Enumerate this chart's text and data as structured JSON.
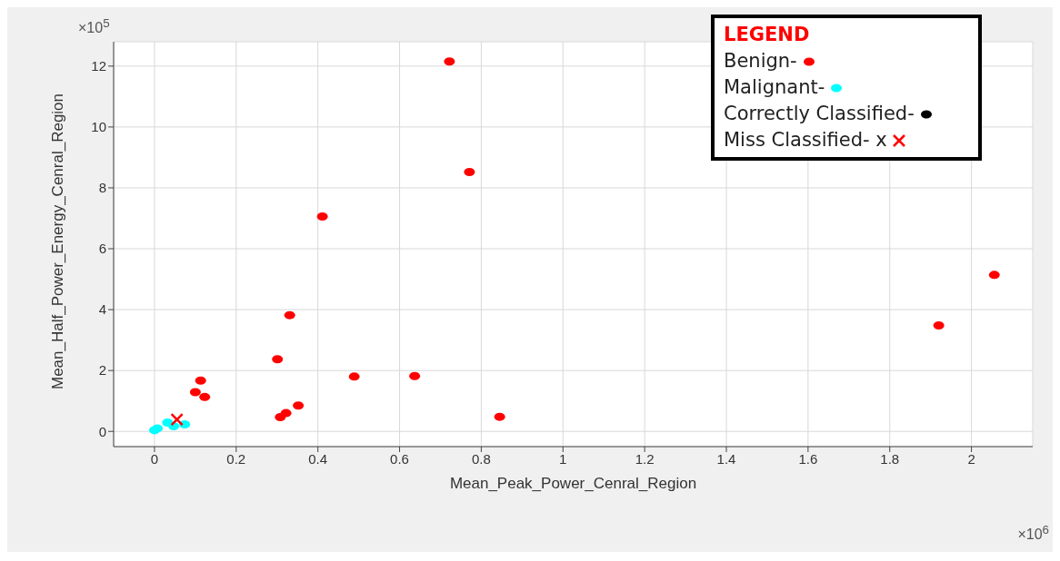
{
  "chart_data": {
    "type": "scatter",
    "xlabel": "Mean_Peak_Power_Cenral_Region",
    "ylabel": "Mean_Half_Power_Energy_Cenral_Region",
    "legend_title": "LEGEND",
    "legend": "top right",
    "grid": true,
    "xlim": [
      -0.1,
      2.15
    ],
    "xticks": [
      0,
      0.2,
      0.4,
      0.6,
      0.8,
      1,
      1.2,
      1.4,
      1.6,
      1.8,
      2
    ],
    "ylim": [
      -0.5,
      12.8
    ],
    "yticks": [
      0,
      2,
      4,
      6,
      8,
      10,
      12
    ],
    "annotations": [
      "×10$^{5}$",
      "×10$^{6}$"
    ],
    "series": [
      {
        "name": "Benign-",
        "color": "#ff0000",
        "marker": "circle",
        "x": [
          0.722,
          0.771,
          0.411,
          0.331,
          0.301,
          0.113,
          0.1,
          0.123,
          0.489,
          0.637,
          0.845,
          0.352,
          0.322,
          0.308,
          1.92,
          2.056
        ],
        "values": [
          12.15,
          8.52,
          7.06,
          3.82,
          2.37,
          1.67,
          1.29,
          1.13,
          1.8,
          1.82,
          0.48,
          0.85,
          0.6,
          0.47,
          3.48,
          5.14
        ]
      },
      {
        "name": "Malignant-",
        "color": "#00ffff",
        "marker": "circle",
        "x": [
          0.0,
          0.007,
          0.032,
          0.047,
          0.074
        ],
        "values": [
          0.04,
          0.1,
          0.29,
          0.17,
          0.23
        ]
      },
      {
        "name": "Correctly Classified-",
        "color": "#000000",
        "marker": "circle"
      },
      {
        "name": "Miss Classified- x",
        "color": "#ff0000",
        "marker": "cross",
        "x": [
          0.055
        ],
        "values": [
          0.39
        ]
      }
    ]
  }
}
